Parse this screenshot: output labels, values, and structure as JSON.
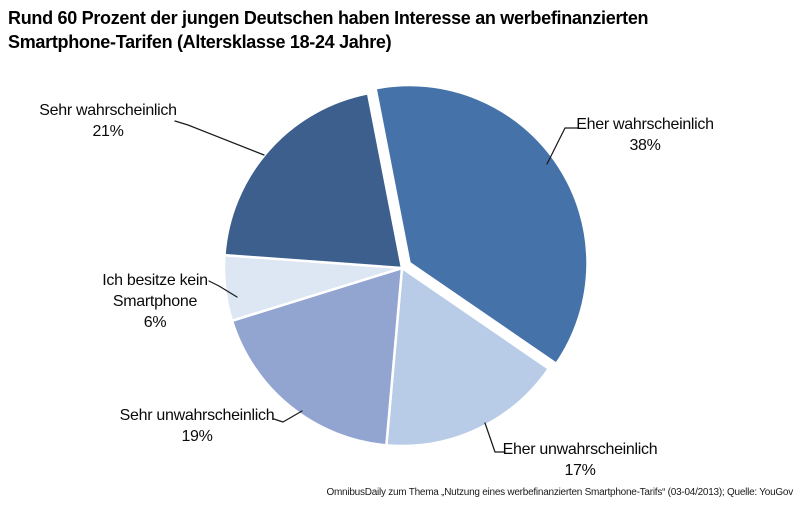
{
  "title": "Rund 60 Prozent der jungen Deutschen haben Interesse an werbefinanzierten Smartphone-Tarifen (Altersklasse 18-24 Jahre)",
  "source": "OmnibusDaily zum Thema „Nutzung eines werbefinanzierten Smartphone-Tarifs“ (03-04/2013); Quelle: YouGov",
  "chart_data": {
    "type": "pie",
    "title": "Rund 60 Prozent der jungen Deutschen haben Interesse an werbefinanzierten Smartphone-Tarifen (Altersklasse 18-24 Jahre)",
    "legend_position": "none",
    "labels_position": "outside-callouts",
    "start_angle_deg": -11,
    "clockwise": true,
    "slices": [
      {
        "label": "Eher wahrscheinlich",
        "value_pct": 38,
        "pct_label": "38%",
        "color": "#4573A9",
        "exploded": true
      },
      {
        "label": "Eher unwahrscheinlich",
        "value_pct": 17,
        "pct_label": "17%",
        "color": "#B8CCE7",
        "exploded": false
      },
      {
        "label": "Sehr unwahrscheinlich",
        "value_pct": 19,
        "pct_label": "19%",
        "color": "#92A5D1",
        "exploded": false
      },
      {
        "label": "Ich besitze kein Smartphone",
        "value_pct": 6,
        "pct_label": "6%",
        "color": "#DDE6F3",
        "exploded": false
      },
      {
        "label": "Sehr wahrscheinlich",
        "value_pct": 21,
        "pct_label": "21%",
        "color": "#3D5F8E",
        "exploded": false
      }
    ],
    "slice_border_color": "#FFFFFF"
  }
}
